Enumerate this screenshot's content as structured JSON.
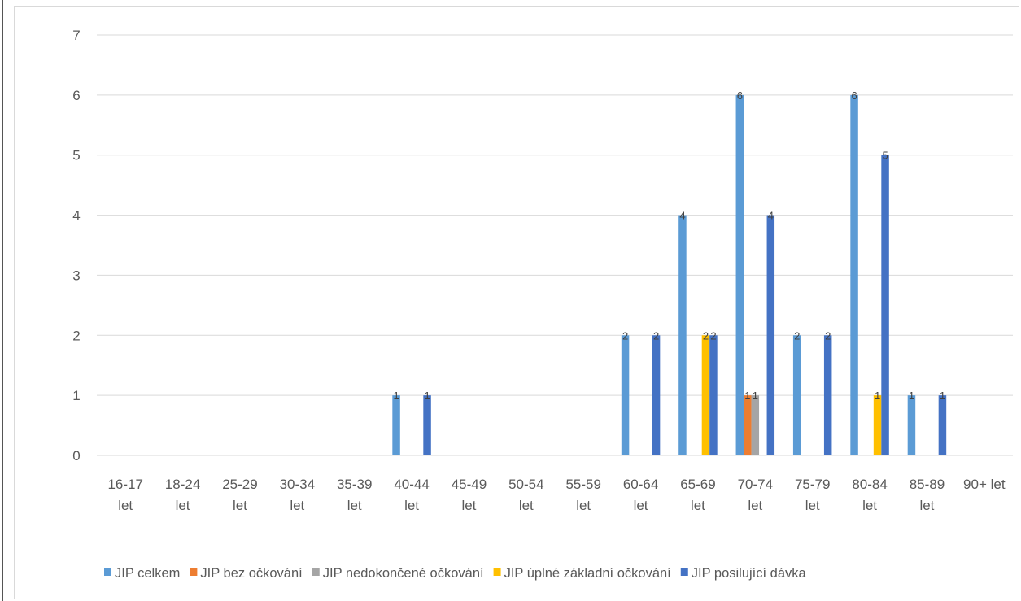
{
  "chart_data": {
    "type": "bar",
    "categories": [
      [
        "16-17",
        "let"
      ],
      [
        "18-24",
        "let"
      ],
      [
        "25-29",
        "let"
      ],
      [
        "30-34",
        "let"
      ],
      [
        "35-39",
        "let"
      ],
      [
        "40-44",
        "let"
      ],
      [
        "45-49",
        "let"
      ],
      [
        "50-54",
        "let"
      ],
      [
        "55-59",
        "let"
      ],
      [
        "60-64",
        "let"
      ],
      [
        "65-69",
        "let"
      ],
      [
        "70-74",
        "let"
      ],
      [
        "75-79",
        "let"
      ],
      [
        "80-84",
        "let"
      ],
      [
        "85-89",
        "let"
      ],
      [
        "90+ let",
        ""
      ]
    ],
    "series": [
      {
        "name": "JIP celkem",
        "color": "#5B9BD5",
        "values": [
          0,
          0,
          0,
          0,
          0,
          1,
          0,
          0,
          0,
          2,
          4,
          6,
          2,
          6,
          1,
          0
        ]
      },
      {
        "name": "JIP bez očkování",
        "color": "#ED7D31",
        "values": [
          0,
          0,
          0,
          0,
          0,
          0,
          0,
          0,
          0,
          0,
          0,
          1,
          0,
          0,
          0,
          0
        ]
      },
      {
        "name": "JIP nedokončené očkování",
        "color": "#A5A5A5",
        "values": [
          0,
          0,
          0,
          0,
          0,
          0,
          0,
          0,
          0,
          0,
          0,
          1,
          0,
          0,
          0,
          0
        ]
      },
      {
        "name": "JIP úplné základní očkování",
        "color": "#FFC000",
        "values": [
          0,
          0,
          0,
          0,
          0,
          0,
          0,
          0,
          0,
          0,
          2,
          0,
          0,
          1,
          0,
          0
        ]
      },
      {
        "name": "JIP posilující dávka",
        "color": "#4472C4",
        "values": [
          0,
          0,
          0,
          0,
          0,
          1,
          0,
          0,
          0,
          2,
          2,
          4,
          2,
          5,
          1,
          0
        ]
      }
    ],
    "yticks": [
      "0",
      "1",
      "2",
      "3",
      "4",
      "5",
      "6",
      "7"
    ],
    "ylim": [
      0,
      7
    ],
    "grid": true,
    "legend_position": "bottom"
  }
}
